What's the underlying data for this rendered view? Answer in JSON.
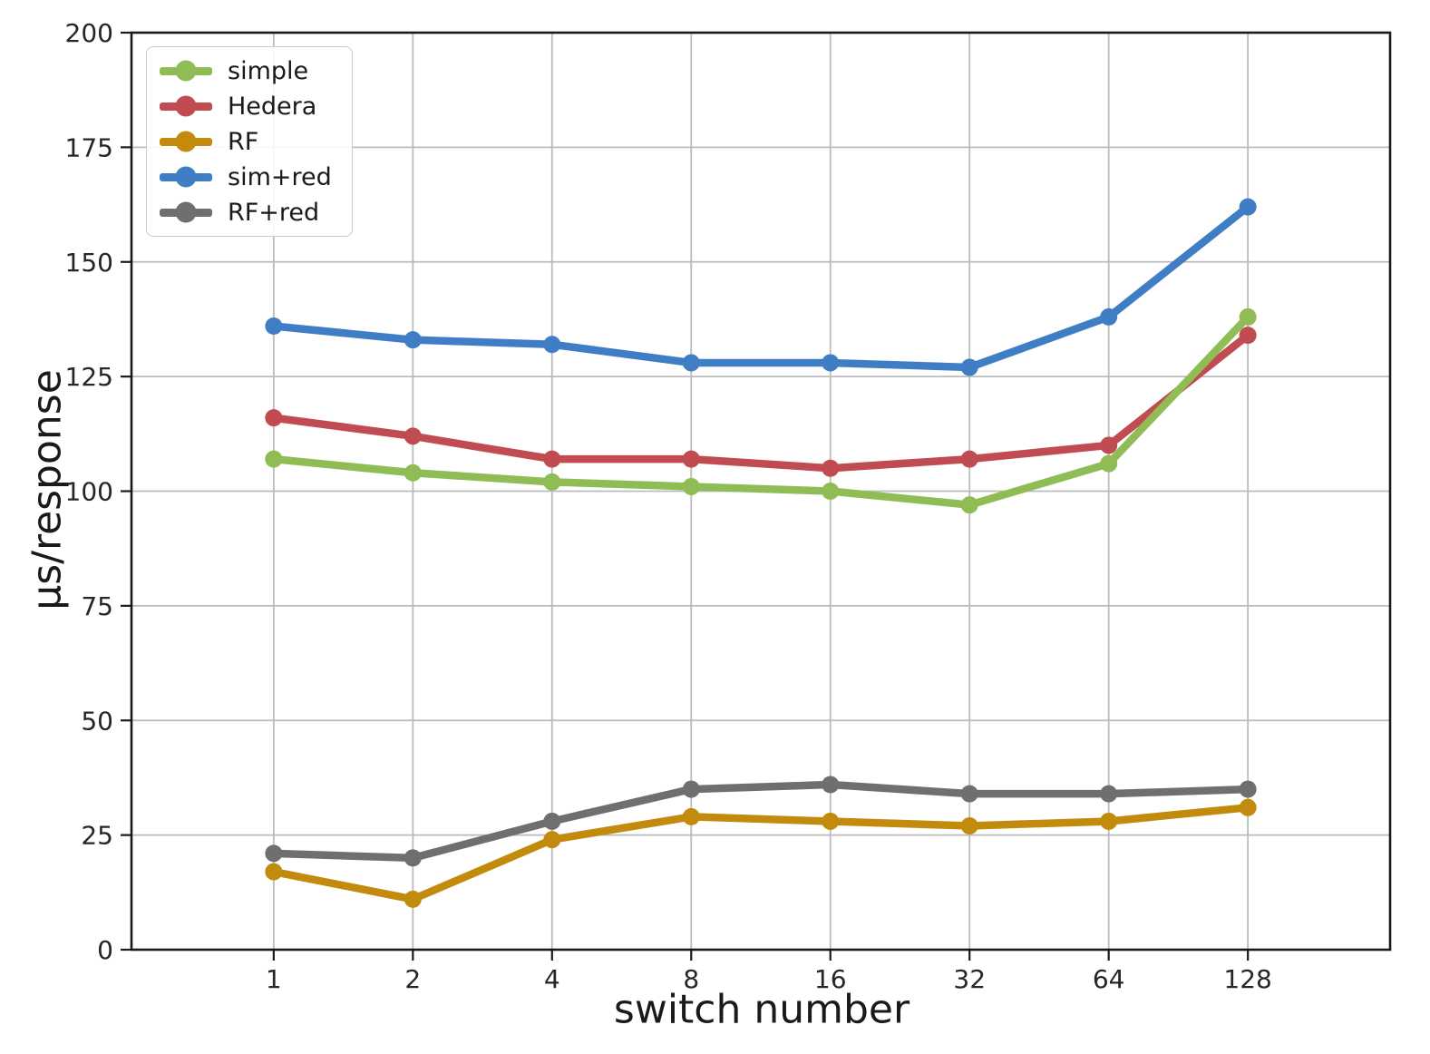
{
  "chart_data": {
    "type": "line",
    "title": "",
    "xlabel": "switch number",
    "ylabel": "µs/response",
    "categories": [
      "1",
      "2",
      "4",
      "8",
      "16",
      "32",
      "64",
      "128"
    ],
    "x_scale": "log2-categorical",
    "ylim": [
      0,
      200
    ],
    "yticks": [
      0,
      25,
      50,
      75,
      100,
      125,
      150,
      175,
      200
    ],
    "grid": true,
    "grid_color": "#bbbbbb",
    "spine_color": "#1a1a1a",
    "legend_position": "upper left",
    "series": [
      {
        "name": "simple",
        "color": "#8fbc55",
        "values": [
          107,
          104,
          102,
          101,
          100,
          97,
          106,
          138
        ]
      },
      {
        "name": "Hedera",
        "color": "#c04b50",
        "values": [
          116,
          112,
          107,
          107,
          105,
          107,
          110,
          134
        ]
      },
      {
        "name": "RF",
        "color": "#c28b0e",
        "values": [
          17,
          11,
          24,
          29,
          28,
          27,
          28,
          31
        ]
      },
      {
        "name": "sim+red",
        "color": "#3f7ec5",
        "values": [
          136,
          133,
          132,
          128,
          128,
          127,
          138,
          162
        ]
      },
      {
        "name": "RF+red",
        "color": "#6f6f6f",
        "values": [
          21,
          20,
          28,
          35,
          36,
          34,
          34,
          35
        ]
      }
    ],
    "draw_order": [
      1,
      0,
      2,
      4,
      3
    ]
  }
}
